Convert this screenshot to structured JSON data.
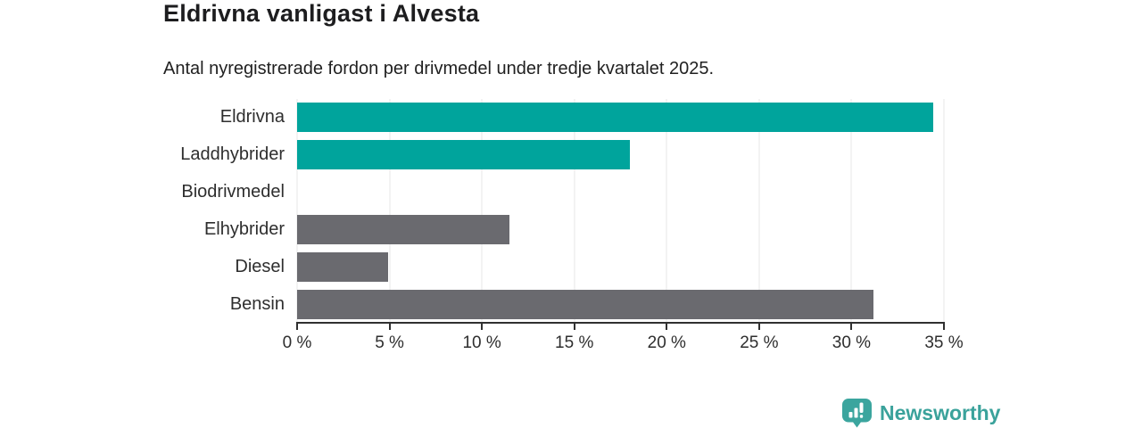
{
  "header": {
    "title": "Eldrivna vanligast i Alvesta",
    "subtitle": "Antal nyregistrerade fordon per drivmedel under tredje kvartalet 2025."
  },
  "chart_data": {
    "type": "bar",
    "orientation": "horizontal",
    "title": "Eldrivna vanligast i Alvesta",
    "subtitle": "Antal nyregistrerade fordon per drivmedel under tredje kvartalet 2025.",
    "categories": [
      "Eldrivna",
      "Laddhybrider",
      "Biodrivmedel",
      "Elhybrider",
      "Diesel",
      "Bensin"
    ],
    "values": [
      34.4,
      18.0,
      0,
      11.5,
      4.9,
      31.2
    ],
    "unit": "%",
    "xlabel": "",
    "ylabel": "",
    "xlim": [
      0,
      35
    ],
    "xticks": [
      0,
      5,
      10,
      15,
      20,
      25,
      30,
      35
    ],
    "tick_labels": [
      "0 %",
      "5 %",
      "10 %",
      "15 %",
      "20 %",
      "25 %",
      "30 %",
      "35 %"
    ],
    "grid": true,
    "legend": "none",
    "bar_colors": [
      "#00a49c",
      "#00a49c",
      "#6a6a6f",
      "#6a6a6f",
      "#6a6a6f",
      "#6a6a6f"
    ],
    "highlight_color": "#00a49c",
    "default_color": "#6a6a6f"
  },
  "branding": {
    "logo_text": "Newsworthy",
    "logo_color": "#3aa29b"
  },
  "colors": {
    "background": "#ffffff",
    "title_text": "#1d1d1f",
    "body_text": "#2e2e2e",
    "gridline": "#e7e7e7",
    "axis": "#303030"
  }
}
